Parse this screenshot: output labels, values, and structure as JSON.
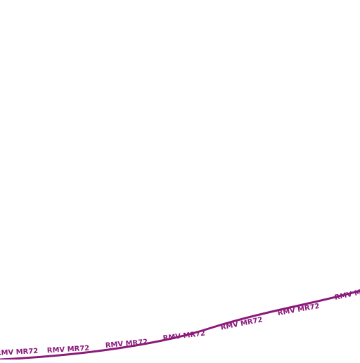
{
  "route": {
    "name": "RMV MR72",
    "color": "#8b1a7a",
    "labels": [
      "RMV MR72",
      "RMV MR72",
      "RMV MR72",
      "RMV MR72",
      "RMV MR72",
      "RMV MR72",
      "RMV MR72"
    ]
  }
}
